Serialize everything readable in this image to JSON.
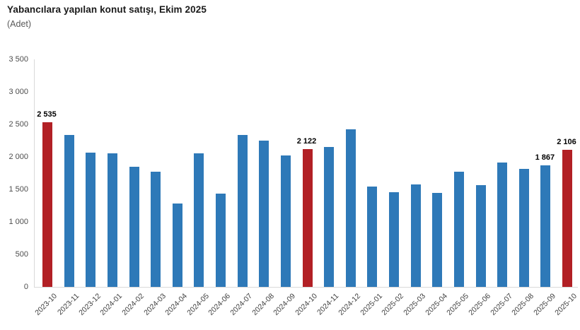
{
  "chart_data": {
    "type": "bar",
    "title": "Yabancılara yapılan konut satışı, Ekim 2025",
    "subtitle": "(Adet)",
    "categories": [
      "2023-10",
      "2023-11",
      "2023-12",
      "2024-01",
      "2024-02",
      "2024-03",
      "2024-04",
      "2024-05",
      "2024-06",
      "2024-07",
      "2024-08",
      "2024-09",
      "2024-10",
      "2024-11",
      "2024-12",
      "2025-01",
      "2025-02",
      "2025-03",
      "2025-04",
      "2025-05",
      "2025-06",
      "2025-07",
      "2025-08",
      "2025-09",
      "2025-10"
    ],
    "values": [
      2535,
      2340,
      2060,
      2050,
      1850,
      1770,
      1280,
      2050,
      1440,
      2340,
      2250,
      2020,
      2122,
      2150,
      2420,
      1540,
      1460,
      1580,
      1450,
      1770,
      1570,
      1910,
      1810,
      1867,
      2106
    ],
    "highlighted_indices": [
      0,
      12,
      24
    ],
    "data_labels": [
      {
        "index": 0,
        "text": "2 535"
      },
      {
        "index": 12,
        "text": "2 122"
      },
      {
        "index": 23,
        "text": "1 867"
      },
      {
        "index": 24,
        "text": "2 106"
      }
    ],
    "bar_color": "#2e79b8",
    "highlight_color": "#b22025",
    "axis_color": "#d9d9d9",
    "ylim": [
      0,
      3500
    ],
    "ytick_values": [
      0,
      500,
      1000,
      1500,
      2000,
      2500,
      3000,
      3500
    ],
    "ytick_labels": [
      "0",
      "500",
      "1 000",
      "1 500",
      "2 000",
      "2 500",
      "3 000",
      "3 500"
    ],
    "xlabel": "",
    "ylabel": "",
    "grid": false,
    "legend": "none"
  }
}
